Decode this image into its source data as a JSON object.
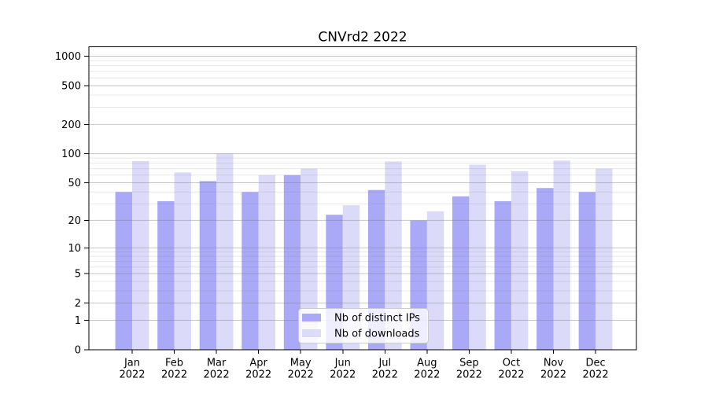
{
  "chart_data": {
    "type": "bar",
    "title": "CNVrd2 2022",
    "categories": [
      "Jan",
      "Feb",
      "Mar",
      "Apr",
      "May",
      "Jun",
      "Jul",
      "Aug",
      "Sep",
      "Oct",
      "Nov",
      "Dec"
    ],
    "x_tick_second_line": "2022",
    "series": [
      {
        "name": "Nb of distinct IPs",
        "color": "#a9a9f8",
        "values": [
          40,
          32,
          52,
          40,
          60,
          23,
          42,
          20,
          36,
          32,
          44,
          40
        ]
      },
      {
        "name": "Nb of downloads",
        "color": "#dbdbf9",
        "values": [
          84,
          64,
          100,
          60,
          70,
          29,
          83,
          25,
          77,
          66,
          85,
          70
        ]
      }
    ],
    "xlabel": "",
    "ylabel": "",
    "yscale": "log1p",
    "ylim": [
      0,
      1250
    ],
    "y_major_ticks": [
      0,
      1,
      2,
      5,
      10,
      20,
      50,
      100,
      200,
      500,
      1000
    ],
    "y_minor_ticks": [
      3,
      4,
      6,
      7,
      8,
      9,
      30,
      40,
      60,
      70,
      80,
      90,
      300,
      400,
      600,
      700,
      800,
      900
    ],
    "grid": "major and minor horizontal gridlines, drawn translucent over bars",
    "legend_position": "lower center"
  },
  "legend": {
    "items": [
      {
        "label": "Nb of distinct IPs",
        "color": "#a9a9f8"
      },
      {
        "label": "Nb of downloads",
        "color": "#dbdbf9"
      }
    ]
  },
  "colors": {
    "series_distinct_ips": "#a9a9f8",
    "series_downloads": "#dbdbf9",
    "grid_major": "rgba(128,128,128,0.45)",
    "grid_minor": "rgba(128,128,128,0.18)",
    "spine": "#000000",
    "tick": "#000000",
    "text": "#000000",
    "legend_bg": "rgba(255,255,255,0.8)",
    "legend_border": "#cccccc",
    "background": "#ffffff"
  }
}
